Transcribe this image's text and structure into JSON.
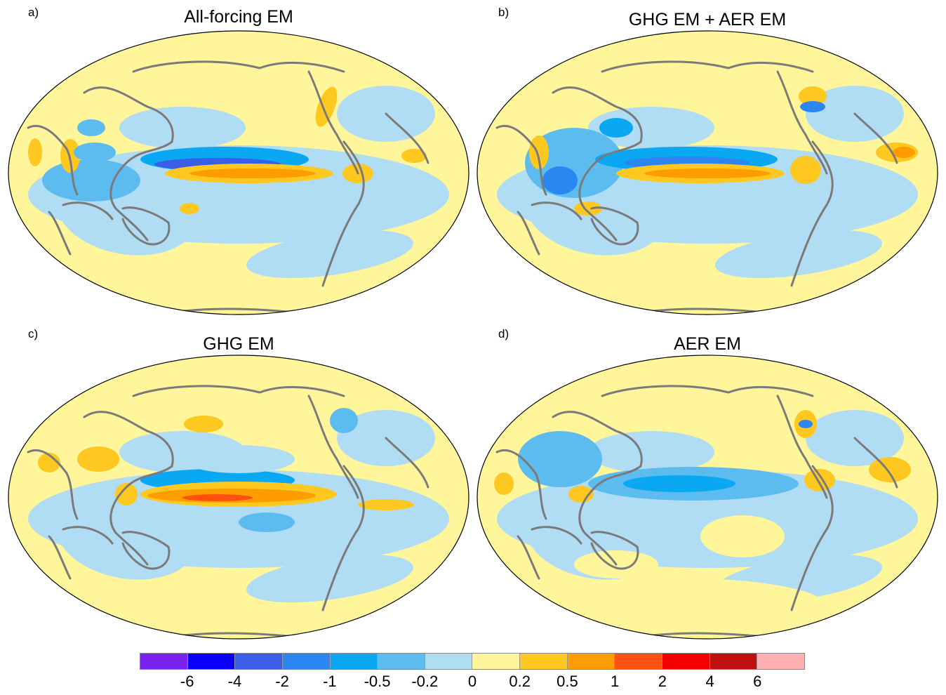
{
  "panels": [
    {
      "letter": "a)",
      "title": "All-forcing EM"
    },
    {
      "letter": "b)",
      "title": "GHG EM + AER EM"
    },
    {
      "letter": "c)",
      "title": "GHG EM"
    },
    {
      "letter": "d)",
      "title": "AER EM"
    }
  ],
  "colorbar": {
    "colors": [
      "#7a22f0",
      "#0a00f5",
      "#3a5ee6",
      "#2c86f2",
      "#0aa8f2",
      "#5cbcf0",
      "#b0dcf4",
      "#fff59a",
      "#ffc820",
      "#ff9c00",
      "#ff5010",
      "#f50000",
      "#c01010",
      "#ffb0b0"
    ],
    "labels": [
      "-6",
      "-4",
      "-2",
      "-1",
      "-0.5",
      "-0.2",
      "0",
      "0.2",
      "0.5",
      "1",
      "2",
      "4",
      "6"
    ]
  },
  "map_colors": {
    "base_positive": "#fff59a",
    "weak_negative": "#b0dcf4",
    "coastline": "#7a7a7a",
    "outline": "#000000"
  }
}
